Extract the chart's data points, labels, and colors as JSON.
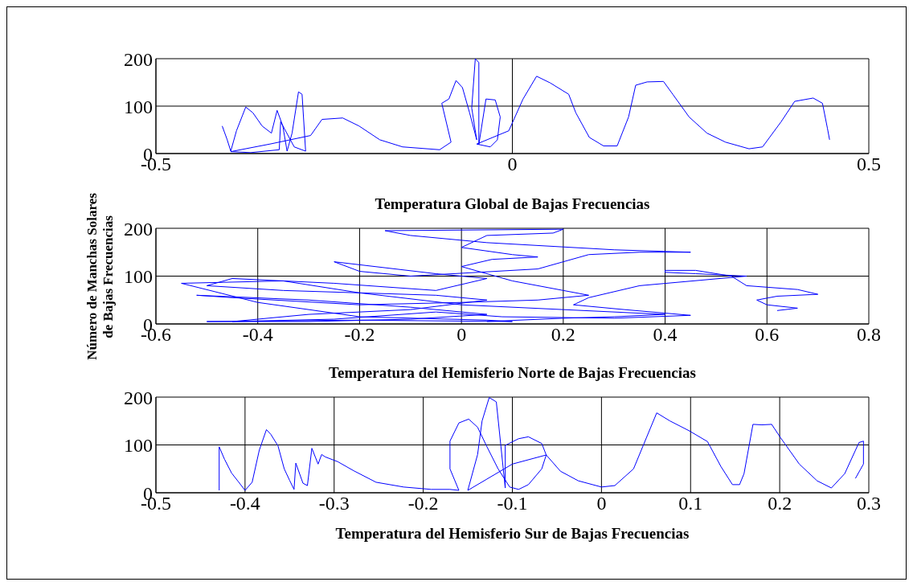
{
  "chart_data": [
    {
      "type": "line",
      "xlabel": "Temperatura Global de Bajas Frecuencias",
      "xlim": [
        -0.5,
        0.5
      ],
      "xticks": [
        -0.5,
        0,
        0.5
      ],
      "ylim": [
        0,
        200
      ],
      "yticks": [
        0,
        100,
        200
      ],
      "grid": true,
      "marker": "none",
      "series": [
        {
          "color": "#0000ff",
          "x": [
            -0.407,
            -0.4,
            -0.395,
            -0.387,
            -0.374,
            -0.364,
            -0.351,
            -0.338,
            -0.33,
            -0.322,
            -0.316,
            -0.309,
            -0.3,
            -0.295,
            -0.29,
            -0.306,
            -0.325,
            -0.327,
            -0.367,
            -0.395,
            -0.34,
            -0.283,
            -0.267,
            -0.238,
            -0.215,
            -0.186,
            -0.154,
            -0.102,
            -0.086,
            -0.099,
            -0.089,
            -0.079,
            -0.07,
            -0.06,
            -0.05,
            -0.057,
            -0.052,
            -0.047,
            -0.047,
            -0.037,
            -0.024,
            -0.017,
            -0.021,
            -0.031,
            -0.05,
            -0.005,
            0.015,
            0.034,
            0.053,
            0.079,
            0.089,
            0.108,
            0.128,
            0.147,
            0.163,
            0.173,
            0.189,
            0.212,
            0.225,
            0.248,
            0.273,
            0.299,
            0.332,
            0.351,
            0.377,
            0.396,
            0.422,
            0.435,
            0.442,
            0.445
          ],
          "values": [
            58,
            29,
            5,
            48,
            98,
            86,
            58,
            43,
            91,
            58,
            5,
            43,
            130,
            125,
            5,
            14,
            67,
            8,
            2,
            4,
            20,
            38,
            72,
            75,
            58,
            29,
            14,
            8,
            24,
            106,
            115,
            154,
            139,
            86,
            29,
            96,
            200,
            192,
            19,
            115,
            113,
            77,
            29,
            14,
            20,
            48,
            115,
            163,
            149,
            125,
            86,
            34,
            16,
            16,
            77,
            144,
            151,
            152,
            125,
            77,
            43,
            24,
            10,
            14,
            67,
            110,
            117,
            106,
            53,
            29
          ]
        }
      ]
    },
    {
      "type": "line",
      "xlabel": "Temperatura del Hemisferio Norte de Bajas Frecuencias",
      "ylabel": "Número de Manchas Solares\nde Bajas Frecuencias",
      "xlim": [
        -0.6,
        0.8
      ],
      "xticks": [
        -0.6,
        -0.4,
        -0.2,
        0,
        0.2,
        0.4,
        0.6,
        0.8
      ],
      "ylim": [
        0,
        200
      ],
      "yticks": [
        0,
        100,
        200
      ],
      "grid": true,
      "marker": "none",
      "series": [
        {
          "color": "#0000ff",
          "x": [
            0.62,
            0.66,
            0.6,
            0.58,
            0.62,
            0.7,
            0.66,
            0.56,
            0.53,
            0.46,
            0.4,
            0.4,
            0.46,
            0.56,
            0.35,
            0.25,
            0.22,
            0.32,
            0.45,
            0.3,
            0.08,
            -0.05,
            -0.25,
            -0.45,
            -0.3,
            -0.1,
            0.05,
            -0.05,
            -0.35,
            -0.5,
            -0.45,
            -0.25,
            -0.05,
            0.05,
            -0.05,
            -0.25,
            -0.2,
            -0.1,
            0.15,
            0.2,
            0.25,
            0.35,
            0.45,
            0.3,
            0.05,
            -0.1,
            -0.15,
            0.2,
            0.18,
            0.05,
            0,
            0.1,
            0.15,
            0.06,
            0,
            0.1,
            0.2,
            0.25,
            0.15,
            0,
            -0.2,
            -0.45,
            -0.52,
            -0.3,
            -0.1,
            0.05,
            -0.1,
            -0.3,
            -0.5,
            -0.2,
            0.1,
            0.05,
            -0.2,
            -0.4,
            -0.55,
            -0.35,
            -0.2,
            0,
            0.2,
            0.4,
            0.3,
            0.2,
            0.05
          ],
          "values": [
            28,
            33,
            40,
            50,
            58,
            62,
            72,
            80,
            100,
            112,
            112,
            108,
            105,
            100,
            80,
            55,
            40,
            30,
            18,
            12,
            15,
            25,
            10,
            5,
            20,
            30,
            50,
            60,
            70,
            80,
            95,
            85,
            70,
            95,
            105,
            130,
            110,
            100,
            115,
            130,
            145,
            150,
            150,
            155,
            170,
            185,
            195,
            198,
            190,
            185,
            160,
            145,
            140,
            135,
            120,
            90,
            70,
            60,
            50,
            45,
            40,
            55,
            60,
            50,
            35,
            20,
            10,
            5,
            5,
            8,
            5,
            8,
            15,
            45,
            85,
            90,
            65,
            40,
            30,
            20,
            15,
            12,
            5
          ]
        }
      ]
    },
    {
      "type": "line",
      "xlabel": "Temperatura del Hemisferio Sur de Bajas Frecuencias",
      "xlim": [
        -0.5,
        0.3
      ],
      "xticks": [
        -0.5,
        -0.4,
        -0.3,
        -0.2,
        -0.1,
        0,
        0.1,
        0.2,
        0.3
      ],
      "ylim": [
        0,
        200
      ],
      "yticks": [
        0,
        100,
        200
      ],
      "grid": true,
      "marker": "none",
      "series": [
        {
          "color": "#0000ff",
          "x": [
            -0.429,
            -0.429,
            -0.423,
            -0.415,
            -0.407,
            -0.4,
            -0.392,
            -0.384,
            -0.376,
            -0.371,
            -0.363,
            -0.356,
            -0.35,
            -0.345,
            -0.343,
            -0.335,
            -0.33,
            -0.325,
            -0.318,
            -0.314,
            -0.31,
            -0.296,
            -0.278,
            -0.253,
            -0.222,
            -0.191,
            -0.17,
            -0.16,
            -0.17,
            -0.17,
            -0.16,
            -0.149,
            -0.139,
            -0.129,
            -0.116,
            -0.103,
            -0.093,
            -0.082,
            -0.067,
            -0.062,
            -0.067,
            -0.082,
            -0.093,
            -0.108,
            -0.108,
            -0.118,
            -0.126,
            -0.134,
            -0.139,
            -0.15,
            -0.1,
            -0.062,
            -0.046,
            -0.026,
            0,
            0.015,
            0.036,
            0.062,
            0.077,
            0.098,
            0.119,
            0.134,
            0.147,
            0.155,
            0.16,
            0.17,
            0.18,
            0.191,
            0.201,
            0.222,
            0.242,
            0.258,
            0.273,
            0.289,
            0.294,
            0.294,
            0.285
          ],
          "values": [
            5,
            96,
            70,
            41,
            22,
            5,
            22,
            89,
            132,
            122,
            98,
            50,
            26,
            7,
            62,
            20,
            15,
            93,
            60,
            80,
            75,
            65,
            46,
            22,
            12,
            7,
            7,
            5,
            50,
            108,
            146,
            154,
            137,
            98,
            50,
            12,
            7,
            17,
            50,
            79,
            103,
            117,
            113,
            99,
            10,
            190,
            199,
            150,
            80,
            5,
            60,
            79,
            45,
            25,
            12,
            15,
            50,
            167,
            150,
            130,
            107,
            55,
            17,
            17,
            40,
            143,
            142,
            143,
            115,
            60,
            25,
            10,
            40,
            105,
            108,
            60,
            30
          ]
        }
      ]
    }
  ]
}
